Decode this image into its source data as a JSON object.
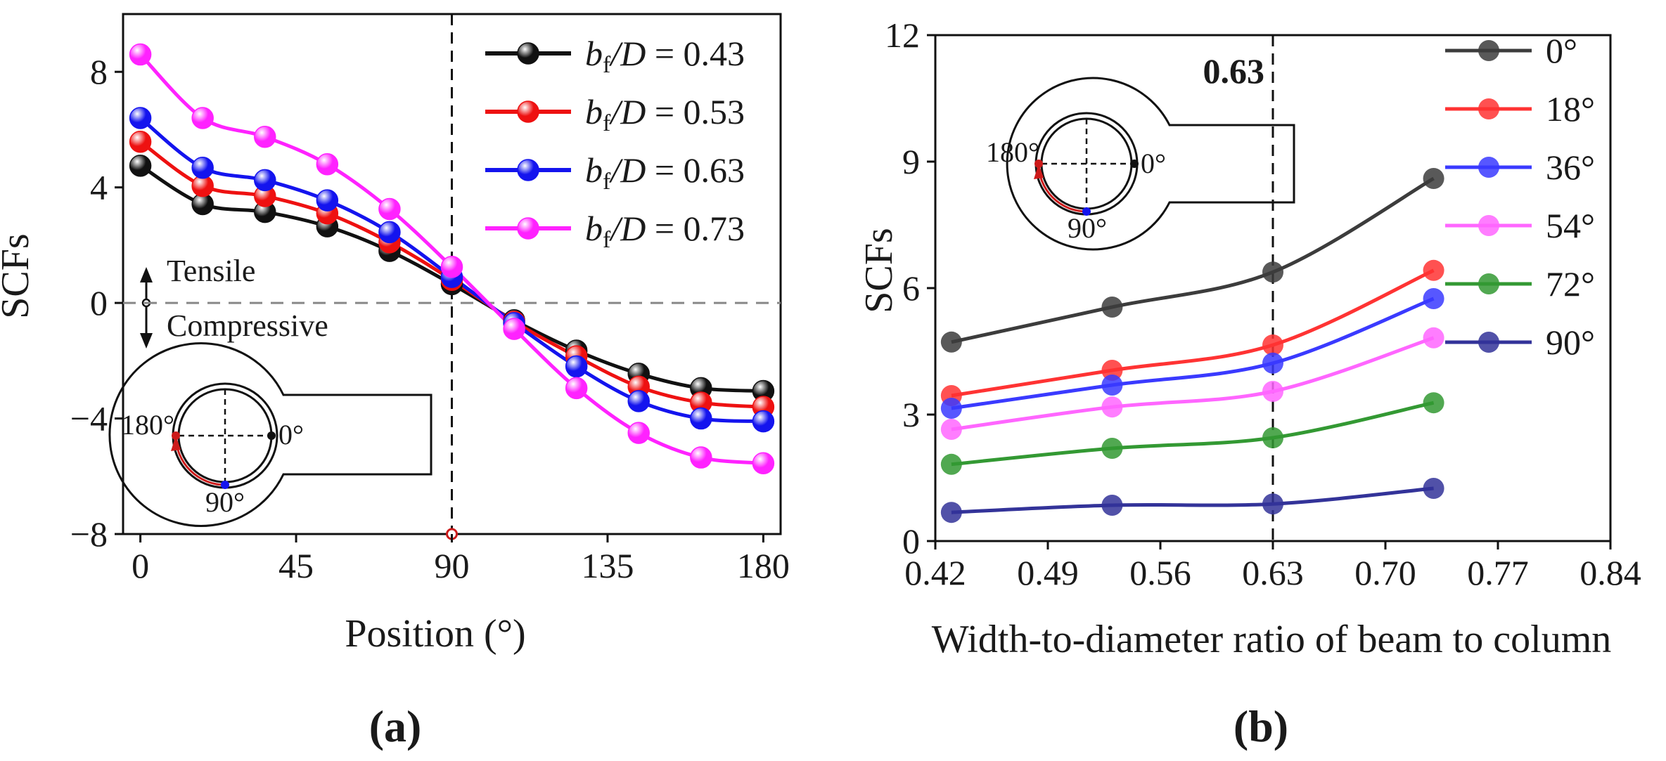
{
  "chart_data": [
    {
      "panel_label": "(a)",
      "type": "line",
      "xlabel": "Position (°)",
      "ylabel": "SCFs",
      "xlim": [
        -5,
        185
      ],
      "ylim": [
        -8,
        10
      ],
      "xticks": [
        "0",
        "45",
        "90",
        "135",
        "180"
      ],
      "yticks": [
        "−8",
        "−4",
        "0",
        "4",
        "8"
      ],
      "x": [
        0,
        18,
        36,
        54,
        72,
        90,
        108,
        126,
        144,
        162,
        180
      ],
      "legend_prefix": "b",
      "legend_sub": "f",
      "legend_mid": "/D = ",
      "series": [
        {
          "name": "0.43",
          "color": "#111111",
          "values": [
            4.75,
            3.42,
            3.15,
            2.65,
            1.8,
            0.65,
            -0.6,
            -1.65,
            -2.45,
            -2.95,
            -3.05
          ]
        },
        {
          "name": "0.53",
          "color": "#ee1111",
          "values": [
            5.58,
            4.05,
            3.7,
            3.1,
            2.1,
            0.8,
            -0.65,
            -1.85,
            -2.9,
            -3.45,
            -3.6
          ]
        },
        {
          "name": "0.63",
          "color": "#1414ee",
          "values": [
            6.4,
            4.68,
            4.25,
            3.55,
            2.45,
            0.9,
            -0.7,
            -2.2,
            -3.4,
            -4.0,
            -4.1
          ]
        },
        {
          "name": "0.73",
          "color": "#ff22ff",
          "values": [
            8.6,
            6.4,
            5.75,
            4.8,
            3.25,
            1.25,
            -0.9,
            -2.95,
            -4.5,
            -5.35,
            -5.55
          ]
        }
      ],
      "reference_x": 90,
      "annotations": {
        "tensile": "Tensile",
        "compressive": "Compressive"
      },
      "inset_labels": {
        "deg0": "0°",
        "deg90": "90°",
        "deg180": "180°"
      }
    },
    {
      "panel_label": "(b)",
      "type": "line",
      "xlabel": "Width-to-diameter ratio of beam to column",
      "ylabel": "SCFs",
      "xlim": [
        0.42,
        0.84
      ],
      "ylim": [
        0,
        12
      ],
      "xticks": [
        "0.42",
        "0.49",
        "0.56",
        "0.63",
        "0.70",
        "0.77",
        "0.84"
      ],
      "yticks": [
        "0",
        "3",
        "6",
        "9",
        "12"
      ],
      "x": [
        0.43,
        0.53,
        0.63,
        0.73
      ],
      "series": [
        {
          "name": "0°",
          "color": "#3c3c3c",
          "values": [
            4.72,
            5.55,
            6.38,
            8.6
          ]
        },
        {
          "name": "18°",
          "color": "#ff3333",
          "values": [
            3.45,
            4.05,
            4.65,
            6.42
          ]
        },
        {
          "name": "36°",
          "color": "#3a3aff",
          "values": [
            3.15,
            3.7,
            4.22,
            5.75
          ]
        },
        {
          "name": "54°",
          "color": "#ff66ff",
          "values": [
            2.65,
            3.18,
            3.55,
            4.82
          ]
        },
        {
          "name": "72°",
          "color": "#339933",
          "values": [
            1.82,
            2.2,
            2.45,
            3.28
          ]
        },
        {
          "name": "90°",
          "color": "#333399",
          "values": [
            0.68,
            0.85,
            0.88,
            1.25
          ]
        }
      ],
      "reference_x": 0.63,
      "reference_label": "0.63",
      "inset_labels": {
        "deg0": "0°",
        "deg90": "90°",
        "deg180": "180°"
      }
    }
  ]
}
